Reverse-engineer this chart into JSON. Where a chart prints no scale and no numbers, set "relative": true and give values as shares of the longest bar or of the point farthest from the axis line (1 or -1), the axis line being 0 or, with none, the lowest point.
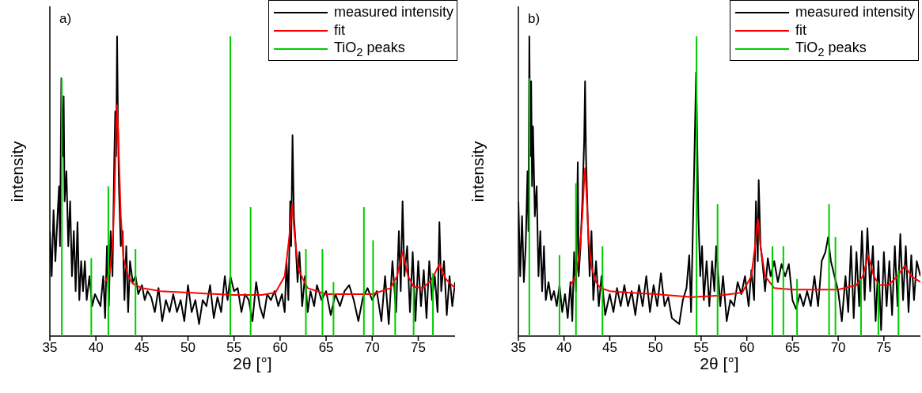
{
  "chart_data": [
    {
      "type": "line",
      "relative": true,
      "xlabel": "2θ [°]",
      "ylabel": "intensity",
      "annotations": [
        "a)"
      ],
      "xlim": [
        35,
        79
      ],
      "xticks": [
        35,
        40,
        45,
        50,
        55,
        60,
        65,
        70,
        75
      ],
      "tick_labels": "x",
      "grid": false,
      "legend": "top right",
      "marker": "none",
      "line_style": "solid",
      "series": [
        {
          "name": "measured intensity",
          "color": "#000000",
          "x": [
            35.0,
            35.2,
            35.4,
            35.6,
            35.8,
            36.0,
            36.1,
            36.25,
            36.4,
            36.5,
            36.6,
            36.8,
            37.0,
            37.2,
            37.4,
            37.6,
            37.8,
            38.0,
            38.2,
            38.4,
            38.6,
            38.8,
            39.0,
            39.3,
            39.6,
            39.9,
            40.2,
            40.5,
            40.8,
            41.0,
            41.2,
            41.4,
            41.6,
            41.8,
            42.0,
            42.1,
            42.2,
            42.3,
            42.4,
            42.5,
            42.7,
            42.9,
            43.1,
            43.3,
            43.5,
            43.7,
            44.0,
            44.3,
            44.6,
            45.0,
            45.3,
            45.6,
            46.0,
            46.4,
            46.8,
            47.2,
            47.6,
            48.0,
            48.4,
            48.8,
            49.2,
            49.6,
            50.0,
            50.4,
            50.8,
            51.2,
            51.6,
            52.0,
            52.4,
            52.8,
            53.2,
            53.6,
            54.0,
            54.3,
            54.6,
            55.0,
            55.4,
            55.8,
            56.2,
            56.6,
            57.0,
            57.4,
            57.8,
            58.2,
            58.6,
            59.0,
            59.4,
            59.8,
            60.2,
            60.5,
            60.7,
            60.9,
            61.1,
            61.2,
            61.35,
            61.5,
            61.7,
            61.9,
            62.1,
            62.4,
            62.7,
            63.0,
            63.3,
            63.7,
            64.0,
            64.5,
            65.0,
            65.5,
            66.0,
            66.5,
            67.0,
            67.5,
            68.0,
            68.5,
            69.0,
            69.5,
            70.0,
            70.5,
            71.0,
            71.4,
            71.8,
            72.2,
            72.6,
            72.9,
            73.1,
            73.3,
            73.5,
            73.8,
            74.1,
            74.4,
            74.7,
            75.0,
            75.3,
            75.6,
            75.9,
            76.2,
            76.5,
            76.8,
            77.1,
            77.3,
            77.5,
            77.8,
            78.1,
            78.4,
            78.7,
            79.0
          ],
          "values": [
            0.35,
            0.2,
            0.42,
            0.25,
            0.38,
            0.5,
            0.3,
            0.86,
            0.6,
            0.8,
            0.45,
            0.55,
            0.3,
            0.45,
            0.2,
            0.35,
            0.15,
            0.38,
            0.12,
            0.25,
            0.15,
            0.25,
            0.12,
            0.2,
            0.1,
            0.14,
            0.12,
            0.1,
            0.2,
            0.06,
            0.3,
            0.1,
            0.35,
            0.2,
            0.6,
            0.75,
            0.6,
            1.0,
            0.7,
            0.5,
            0.3,
            0.35,
            0.12,
            0.3,
            0.08,
            0.25,
            0.18,
            0.2,
            0.14,
            0.17,
            0.12,
            0.15,
            0.13,
            0.08,
            0.16,
            0.05,
            0.12,
            0.08,
            0.14,
            0.08,
            0.12,
            0.05,
            0.17,
            0.08,
            0.12,
            0.04,
            0.12,
            0.1,
            0.17,
            0.06,
            0.13,
            0.08,
            0.2,
            0.12,
            0.2,
            0.15,
            0.16,
            0.08,
            0.14,
            0.12,
            0.05,
            0.18,
            0.1,
            0.06,
            0.14,
            0.12,
            0.15,
            0.1,
            0.14,
            0.08,
            0.25,
            0.12,
            0.45,
            0.3,
            0.67,
            0.4,
            0.3,
            0.18,
            0.28,
            0.1,
            0.2,
            0.08,
            0.15,
            0.1,
            0.17,
            0.12,
            0.15,
            0.07,
            0.14,
            0.1,
            0.15,
            0.17,
            0.12,
            0.05,
            0.13,
            0.16,
            0.12,
            0.15,
            0.05,
            0.2,
            0.04,
            0.25,
            0.08,
            0.35,
            0.15,
            0.45,
            0.2,
            0.3,
            0.08,
            0.28,
            0.05,
            0.25,
            0.1,
            0.22,
            0.06,
            0.25,
            0.12,
            0.2,
            0.08,
            0.38,
            0.15,
            0.25,
            0.07,
            0.2,
            0.1,
            0.18
          ]
        },
        {
          "name": "fit",
          "color": "#ff0000",
          "x": [
            41,
            41.5,
            41.8,
            42.0,
            42.2,
            42.3,
            42.45,
            42.7,
            43,
            43.5,
            44,
            45,
            47,
            50,
            55,
            58,
            59.5,
            60.5,
            61,
            61.3,
            61.6,
            62,
            63,
            65,
            70,
            72,
            72.7,
            73.3,
            73.9,
            74.5,
            75.5,
            76.5,
            77.3,
            78,
            79
          ],
          "values": [
            0.18,
            0.21,
            0.3,
            0.45,
            0.7,
            0.77,
            0.65,
            0.4,
            0.26,
            0.2,
            0.175,
            0.16,
            0.15,
            0.145,
            0.137,
            0.137,
            0.145,
            0.2,
            0.33,
            0.44,
            0.33,
            0.22,
            0.16,
            0.14,
            0.14,
            0.16,
            0.2,
            0.28,
            0.2,
            0.165,
            0.16,
            0.19,
            0.24,
            0.19,
            0.16
          ]
        },
        {
          "name": "TiO$_{2}$ peaks",
          "color": "#00cc00",
          "type": "bar",
          "x": [
            36.3,
            39.5,
            41.35,
            44.3,
            54.6,
            56.8,
            62.8,
            64.6,
            65.8,
            69.1,
            70.1,
            72.5,
            74.5,
            76.6
          ],
          "values": [
            0.86,
            0.26,
            0.5,
            0.29,
            1.0,
            0.43,
            0.29,
            0.29,
            0.18,
            0.43,
            0.32,
            0.18,
            0.16,
            0.21
          ]
        }
      ]
    },
    {
      "type": "line",
      "relative": true,
      "xlabel": "2θ [°]",
      "ylabel": "intensity",
      "annotations": [
        "b)"
      ],
      "xlim": [
        35,
        79
      ],
      "xticks": [
        35,
        40,
        45,
        50,
        55,
        60,
        65,
        70,
        75
      ],
      "tick_labels": "x",
      "grid": false,
      "legend": "top right",
      "marker": "none",
      "line_style": "solid",
      "series": [
        {
          "name": "measured intensity",
          "color": "#000000",
          "x": [
            35,
            35.2,
            35.4,
            35.6,
            35.8,
            36.0,
            36.1,
            36.2,
            36.3,
            36.4,
            36.5,
            36.6,
            36.8,
            37.0,
            37.2,
            37.4,
            37.6,
            37.8,
            38.0,
            38.3,
            38.6,
            38.9,
            39.2,
            39.5,
            39.8,
            40.1,
            40.4,
            40.7,
            40.9,
            41.1,
            41.3,
            41.5,
            41.6,
            41.8,
            42.0,
            42.2,
            42.3,
            42.4,
            42.6,
            42.8,
            43.0,
            43.2,
            43.5,
            43.8,
            44.1,
            44.5,
            45.0,
            45.4,
            45.8,
            46.2,
            46.6,
            47,
            47.4,
            47.8,
            48.2,
            48.6,
            49,
            49.4,
            49.8,
            50.2,
            50.6,
            51,
            51.4,
            51.8,
            52.2,
            52.6,
            53,
            53.4,
            53.7,
            53.9,
            54.2,
            54.45,
            54.7,
            54.9,
            55.1,
            55.3,
            55.6,
            55.9,
            56.2,
            56.45,
            56.65,
            57.1,
            57.4,
            57.8,
            58.2,
            58.6,
            59,
            59.4,
            59.8,
            60.2,
            60.5,
            60.8,
            61.0,
            61.2,
            61.3,
            61.5,
            61.7,
            62.0,
            62.3,
            62.6,
            63,
            63.4,
            63.8,
            64.2,
            64.6,
            65,
            65.4,
            65.8,
            66.2,
            66.6,
            67,
            67.4,
            67.8,
            68.2,
            68.6,
            68.9,
            69.2,
            69.6,
            70,
            70.4,
            70.8,
            71.1,
            71.4,
            71.7,
            72,
            72.3,
            72.6,
            72.9,
            73.2,
            73.5,
            73.8,
            74.1,
            74.4,
            74.7,
            75,
            75.3,
            75.6,
            75.9,
            76.2,
            76.5,
            76.8,
            77.1,
            77.4,
            77.7,
            78,
            78.3,
            78.6,
            79
          ],
          "values": [
            0.45,
            0.2,
            0.4,
            0.18,
            0.3,
            0.55,
            0.35,
            1.0,
            0.6,
            0.85,
            0.5,
            0.7,
            0.4,
            0.5,
            0.2,
            0.35,
            0.15,
            0.3,
            0.12,
            0.18,
            0.12,
            0.15,
            0.1,
            0.17,
            0.08,
            0.14,
            0.06,
            0.18,
            0.05,
            0.28,
            0.15,
            0.58,
            0.2,
            0.3,
            0.45,
            0.65,
            0.85,
            0.6,
            0.38,
            0.2,
            0.35,
            0.12,
            0.25,
            0.1,
            0.2,
            0.07,
            0.14,
            0.08,
            0.16,
            0.1,
            0.17,
            0.1,
            0.15,
            0.07,
            0.17,
            0.1,
            0.2,
            0.08,
            0.17,
            0.1,
            0.21,
            0.1,
            0.13,
            0.06,
            0.05,
            0.04,
            0.12,
            0.16,
            0.27,
            0.08,
            0.5,
            0.88,
            0.4,
            0.2,
            0.3,
            0.12,
            0.25,
            0.1,
            0.25,
            0.15,
            0.3,
            0.1,
            0.2,
            0.05,
            0.12,
            0.1,
            0.18,
            0.14,
            0.2,
            0.1,
            0.22,
            0.12,
            0.45,
            0.25,
            0.52,
            0.3,
            0.25,
            0.15,
            0.26,
            0.2,
            0.25,
            0.18,
            0.24,
            0.2,
            0.24,
            0.12,
            0.09,
            0.14,
            0.1,
            0.15,
            0.1,
            0.2,
            0.1,
            0.25,
            0.28,
            0.33,
            0.25,
            0.2,
            0.15,
            0.05,
            0.2,
            0.08,
            0.3,
            0.06,
            0.28,
            0.1,
            0.35,
            0.12,
            0.36,
            0.15,
            0.3,
            0.05,
            0.25,
            0.02,
            0.28,
            0.1,
            0.25,
            0.07,
            0.3,
            0.1,
            0.34,
            0.12,
            0.3,
            0.08,
            0.27,
            0.12,
            0.25,
            0.2
          ]
        },
        {
          "name": "fit",
          "color": "#ff0000",
          "x": [
            40.7,
            41.3,
            41.7,
            42.0,
            42.2,
            42.3,
            42.45,
            42.7,
            43,
            43.5,
            44,
            45,
            47,
            50,
            54,
            57,
            59.5,
            60.5,
            60.9,
            61.2,
            61.5,
            62,
            63,
            65,
            70,
            72,
            72.7,
            73.3,
            73.9,
            74.5,
            75.5,
            76.5,
            77.3,
            78,
            79
          ],
          "values": [
            0.17,
            0.2,
            0.28,
            0.4,
            0.52,
            0.56,
            0.48,
            0.32,
            0.23,
            0.18,
            0.16,
            0.15,
            0.145,
            0.14,
            0.13,
            0.135,
            0.145,
            0.2,
            0.3,
            0.39,
            0.3,
            0.2,
            0.16,
            0.155,
            0.155,
            0.17,
            0.2,
            0.27,
            0.2,
            0.17,
            0.17,
            0.2,
            0.235,
            0.2,
            0.18
          ]
        },
        {
          "name": "TiO$_{2}$ peaks",
          "color": "#00cc00",
          "type": "bar",
          "x": [
            36.2,
            39.5,
            41.3,
            44.2,
            54.5,
            56.8,
            62.8,
            64.0,
            65.5,
            69.0,
            69.7,
            72.5,
            74.4,
            76.6
          ],
          "values": [
            0.86,
            0.27,
            0.51,
            0.3,
            1.0,
            0.44,
            0.3,
            0.3,
            0.19,
            0.44,
            0.33,
            0.19,
            0.18,
            0.22
          ]
        }
      ]
    }
  ]
}
